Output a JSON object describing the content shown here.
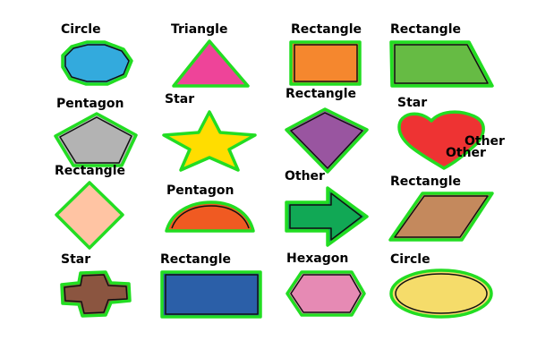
{
  "annotation_color": "#22dd22",
  "shapes": [
    {
      "label": "Circle",
      "fill": "#33aadd"
    },
    {
      "label": "Triangle",
      "fill": "#ee4499"
    },
    {
      "label": "Rectangle",
      "fill": "#f5872e"
    },
    {
      "label": "Rectangle",
      "fill": "#66bb44"
    },
    {
      "label": "Pentagon",
      "fill": "#b3b3b3"
    },
    {
      "label": "Star",
      "fill": "#ffdd00"
    },
    {
      "label": "Rectangle",
      "fill": "#9955a0"
    },
    {
      "label": "Star",
      "fill": "#ee3333"
    },
    {
      "label": "Rectangle",
      "fill": "#ffc4a3"
    },
    {
      "label": "Pentagon",
      "fill": "#f05a22"
    },
    {
      "label": "Other",
      "fill": "#11a855"
    },
    {
      "label": "Rectangle",
      "fill": "#c4895d"
    },
    {
      "label": "Star",
      "fill": "#8b5540"
    },
    {
      "label": "Rectangle",
      "fill": "#2b5fa8"
    },
    {
      "label": "Hexagon",
      "fill": "#e68ab4"
    },
    {
      "label": "Circle",
      "fill": "#f5dc6a"
    }
  ],
  "extra_labels": [
    {
      "text": "Other"
    },
    {
      "text": "Other"
    }
  ]
}
